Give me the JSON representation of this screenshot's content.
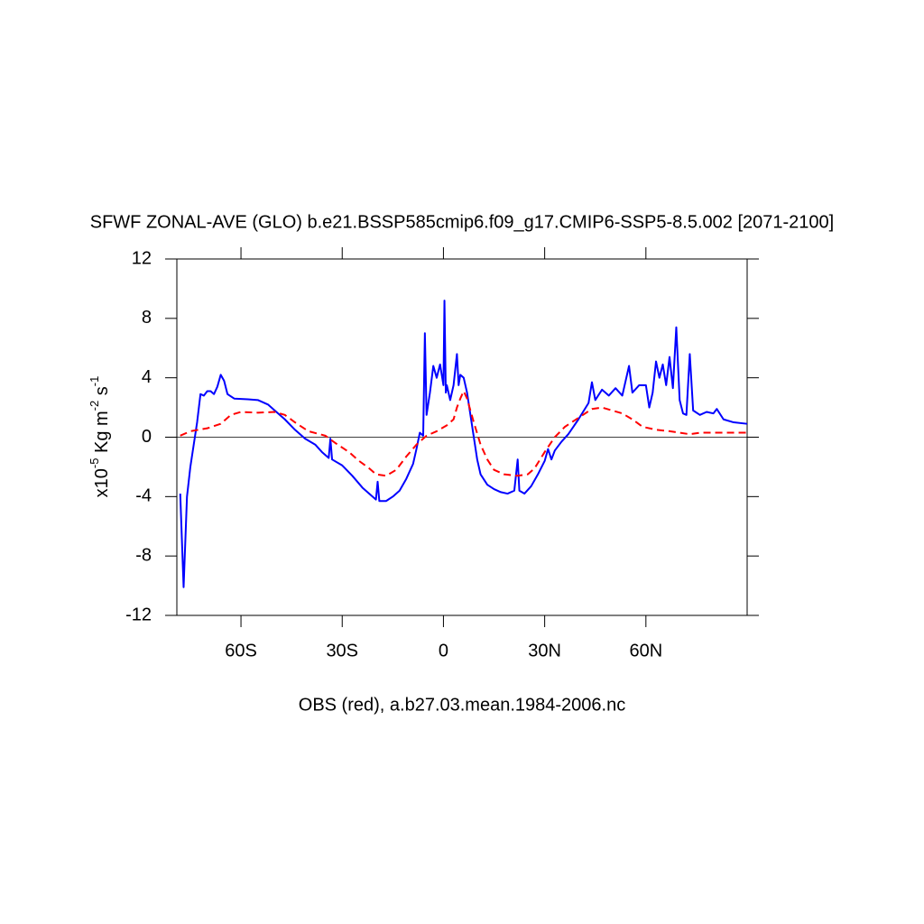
{
  "chart_data": {
    "type": "line",
    "title": "SFWF ZONAL-AVE (GLO) b.e21.BSSP585cmip6.f09_g17.CMIP6-SSP5-8.5.002 [2071-2100]",
    "ylabel": [
      "x10",
      "-5",
      " Kg m",
      "-2",
      " s",
      "-1"
    ],
    "xlabel": "OBS (red), a.b27.03.mean.1984-2006.nc",
    "xlim": [
      -79,
      90
    ],
    "ylim": [
      -12,
      12
    ],
    "xticks": [
      {
        "value": -60,
        "label": "60S"
      },
      {
        "value": -30,
        "label": "30S"
      },
      0,
      {
        "value": 30,
        "label": "30N"
      },
      {
        "value": 60,
        "label": "60N"
      }
    ],
    "yticks": [
      12,
      8,
      4,
      0,
      -4,
      -8,
      -12
    ],
    "series": [
      {
        "color": "#0000ff",
        "dash": false,
        "x": [
          -78,
          -77,
          -76,
          -75,
          -74,
          -73,
          -72,
          -71,
          -70,
          -69,
          -68,
          -67,
          -66,
          -65,
          -64,
          -62,
          -58,
          -55,
          -52,
          -50,
          -47,
          -44,
          -41,
          -38,
          -36,
          -35,
          -34,
          -33.5,
          -33,
          -30,
          -27,
          -24,
          -21,
          -20,
          -19.5,
          -19,
          -17,
          -15,
          -13,
          -11,
          -10,
          -9,
          -8,
          -7,
          -6,
          -5.5,
          -5,
          -4,
          -3,
          -2,
          -1,
          0,
          0.3,
          0.7,
          1,
          2,
          3,
          4,
          4.5,
          5,
          6,
          7,
          8,
          9,
          10,
          11,
          13,
          15,
          17,
          19,
          21,
          22,
          22.5,
          24,
          26,
          28,
          30,
          31,
          32,
          33,
          35,
          37,
          40,
          43,
          44,
          45,
          47,
          49,
          51,
          53,
          55,
          56,
          58,
          60,
          61,
          62,
          63,
          64,
          65,
          66,
          67,
          68,
          69,
          70,
          71,
          72,
          73,
          74,
          76,
          78,
          80,
          81,
          83,
          86,
          90
        ],
        "values": [
          -3.8,
          -10.1,
          -4,
          -2,
          -0.5,
          1,
          2.9,
          2.8,
          3.1,
          3.1,
          2.9,
          3.4,
          4.2,
          3.8,
          2.9,
          2.6,
          2.55,
          2.5,
          2.2,
          1.8,
          1.2,
          0.5,
          -0.1,
          -0.5,
          -1.0,
          -1.2,
          -1.4,
          -0.1,
          -1.5,
          -1.9,
          -2.6,
          -3.4,
          -4.0,
          -4.2,
          -3.0,
          -4.3,
          -4.3,
          -4.0,
          -3.6,
          -2.8,
          -2.3,
          -1.8,
          -0.8,
          0.3,
          0.1,
          7.0,
          1.5,
          3,
          4.8,
          4,
          4.9,
          3.5,
          9.2,
          3,
          3.5,
          2.5,
          3.5,
          5.6,
          3.5,
          4.2,
          4.0,
          3,
          1.5,
          0,
          -1.5,
          -2.5,
          -3.2,
          -3.5,
          -3.7,
          -3.8,
          -3.6,
          -1.5,
          -3.6,
          -3.8,
          -3.3,
          -2.5,
          -1.6,
          -0.8,
          -1.5,
          -0.9,
          -0.3,
          0.2,
          1.2,
          2.3,
          3.7,
          2.5,
          3.2,
          2.8,
          3.3,
          2.8,
          4.8,
          3.0,
          3.5,
          3.5,
          2.0,
          3,
          5.1,
          4,
          4.9,
          3.5,
          5.4,
          3.3,
          7.4,
          2.5,
          1.6,
          1.5,
          5.6,
          1.8,
          1.5,
          1.7,
          1.6,
          1.9,
          1.2,
          1.0,
          0.9
        ]
      },
      {
        "color": "#ff0000",
        "dash": true,
        "x": [
          -78,
          -75,
          -70,
          -66,
          -63,
          -60,
          -55,
          -50,
          -47,
          -44,
          -40,
          -35,
          -32,
          -28,
          -25,
          -22,
          -20,
          -17,
          -14,
          -11,
          -8,
          -5,
          -2,
          1,
          3,
          4,
          5,
          6,
          7,
          9,
          11,
          13,
          15,
          18,
          22,
          25,
          27,
          30,
          33,
          36,
          40,
          44,
          47,
          50,
          53,
          56,
          59,
          63,
          67,
          70,
          73,
          76,
          80,
          85,
          90
        ],
        "values": [
          0.1,
          0.4,
          0.6,
          0.9,
          1.5,
          1.7,
          1.65,
          1.7,
          1.5,
          1.0,
          0.4,
          0.1,
          -0.4,
          -1.0,
          -1.6,
          -2.1,
          -2.5,
          -2.6,
          -2.2,
          -1.3,
          -0.5,
          0.1,
          0.4,
          0.8,
          1.2,
          2.0,
          2.6,
          3.1,
          2.6,
          1.0,
          -0.5,
          -1.5,
          -2.2,
          -2.5,
          -2.6,
          -2.5,
          -2.1,
          -1.0,
          0,
          0.7,
          1.3,
          1.9,
          2.0,
          1.8,
          1.6,
          1.2,
          0.7,
          0.5,
          0.4,
          0.3,
          0.2,
          0.3,
          0.3,
          0.3,
          0.3
        ]
      }
    ]
  }
}
